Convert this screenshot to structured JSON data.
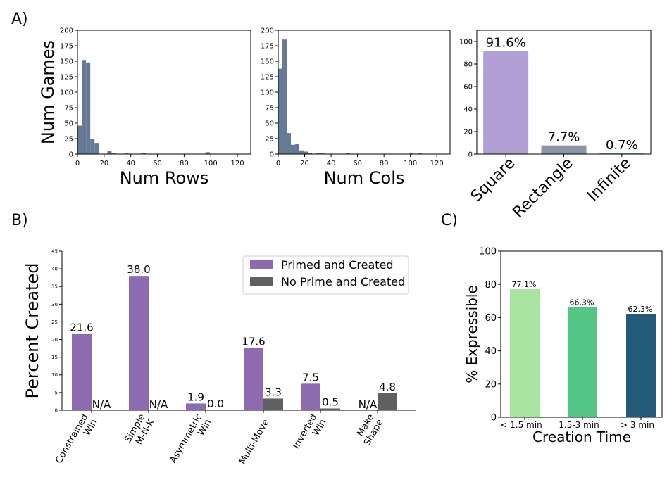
{
  "panel_labels": {
    "a": "A)",
    "b": "B)",
    "c": "C)"
  },
  "colors": {
    "hist": "#677a95",
    "shape_bars": [
      "#b19fd6",
      "#8896a8",
      "#7fc0bd"
    ],
    "primed": "#8c6bb1",
    "noprime": "#606060",
    "time_bars": [
      "#a6e49f",
      "#53c585",
      "#225a78"
    ]
  },
  "chart_data": [
    {
      "id": "rows",
      "type": "bar",
      "subtype": "histogram",
      "title": "",
      "xlabel": "Num Rows",
      "ylabel": "Num Games",
      "xlim": [
        0,
        130
      ],
      "ylim": [
        0,
        200
      ],
      "xticks": [
        0,
        20,
        40,
        60,
        80,
        100,
        120
      ],
      "yticks": [
        0,
        25,
        50,
        75,
        100,
        125,
        150,
        175,
        200
      ],
      "bin_width": 3.2,
      "bins_start": [
        0,
        3.2,
        6.4,
        9.6,
        12.8,
        16,
        19.2,
        22.4,
        25.6,
        28.8,
        32,
        35.2,
        38.4,
        41.6,
        44.8,
        48,
        51.2,
        96,
        99.2
      ],
      "values": [
        46,
        152,
        148,
        25,
        18,
        0,
        0,
        5,
        1,
        0,
        0,
        1,
        0,
        0,
        0,
        2,
        0,
        3,
        0
      ]
    },
    {
      "id": "cols",
      "type": "bar",
      "subtype": "histogram",
      "title": "",
      "xlabel": "Num Cols",
      "ylabel": "",
      "xlim": [
        0,
        130
      ],
      "ylim": [
        0,
        200
      ],
      "xticks": [
        0,
        20,
        40,
        60,
        80,
        100,
        120
      ],
      "yticks": [
        0,
        25,
        50,
        75,
        100,
        125,
        150,
        175,
        200
      ],
      "bin_width": 3.2,
      "bins_start": [
        0,
        3.2,
        6.4,
        9.6,
        12.8,
        16,
        19.2,
        22.4,
        25.6,
        28.8,
        32,
        35.2,
        38.4,
        48,
        51.2,
        99.2,
        105.6
      ],
      "values": [
        138,
        185,
        34,
        15,
        17,
        6,
        4,
        2,
        0,
        1,
        1,
        0,
        0,
        0,
        2,
        1,
        1
      ]
    },
    {
      "id": "shape",
      "type": "bar",
      "title": "",
      "xlabel": "",
      "ylabel": "",
      "ylim": [
        0,
        110
      ],
      "yticks": [
        0,
        20,
        40,
        60,
        80,
        100
      ],
      "categories": [
        "Square",
        "Rectangle",
        "Infinite"
      ],
      "values": [
        91.6,
        7.7,
        0.7
      ],
      "data_labels": [
        "91.6%",
        "7.7%",
        "0.7%"
      ]
    },
    {
      "id": "created",
      "type": "bar",
      "title": "",
      "xlabel": "",
      "ylabel": "Percent Created",
      "ylim": [
        0,
        45
      ],
      "yticks": [
        0,
        5,
        10,
        15,
        20,
        25,
        30,
        35,
        40,
        45
      ],
      "categories": [
        "Constrained\nWin",
        "Simple\nM-N-K",
        "Asymmetric\nWin",
        "Multi-Move",
        "Inverted\nWin",
        "Make\nShape"
      ],
      "legend_position": "top-right",
      "series": [
        {
          "name": "Primed and Created",
          "values": [
            21.6,
            38.0,
            1.9,
            17.6,
            7.5,
            null
          ],
          "labels": [
            "21.6",
            "38.0",
            "1.9",
            "17.6",
            "7.5",
            "N/A"
          ]
        },
        {
          "name": "No Prime and Created",
          "values": [
            null,
            null,
            0.0,
            3.3,
            0.5,
            4.8
          ],
          "labels": [
            "N/A",
            "N/A",
            "0.0",
            "3.3",
            "0.5",
            "4.8"
          ]
        }
      ]
    },
    {
      "id": "expressible",
      "type": "bar",
      "title": "",
      "xlabel": "Creation Time",
      "ylabel": "% Expressible",
      "ylim": [
        0,
        100
      ],
      "yticks": [
        0,
        20,
        40,
        60,
        80,
        100
      ],
      "categories": [
        "< 1.5 min",
        "1.5-3 min",
        "> 3 min"
      ],
      "values": [
        77.1,
        66.3,
        62.3
      ],
      "data_labels": [
        "77.1%",
        "66.3%",
        "62.3%"
      ]
    }
  ]
}
